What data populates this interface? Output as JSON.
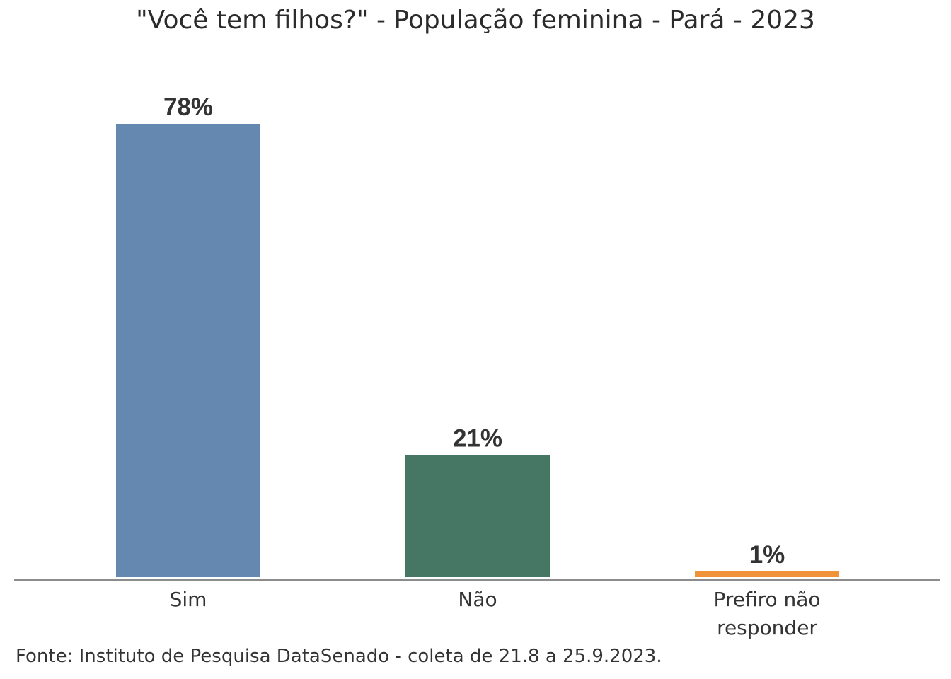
{
  "chart_data": {
    "type": "bar",
    "title": "\"Você tem filhos?\" - População feminina - Pará - 2023",
    "categories": [
      [
        "Sim"
      ],
      [
        "Não"
      ],
      [
        "Prefiro não",
        "responder"
      ]
    ],
    "values": [
      78,
      21,
      1
    ],
    "value_labels": [
      "78%",
      "21%",
      "1%"
    ],
    "colors": [
      "#6488af",
      "#467664",
      "#f0923a"
    ],
    "ylim": [
      0,
      78
    ],
    "grid": false,
    "legend": "none",
    "source": "Fonte: Instituto de Pesquisa DataSenado - coleta de 21.8 a 25.9.2023."
  }
}
